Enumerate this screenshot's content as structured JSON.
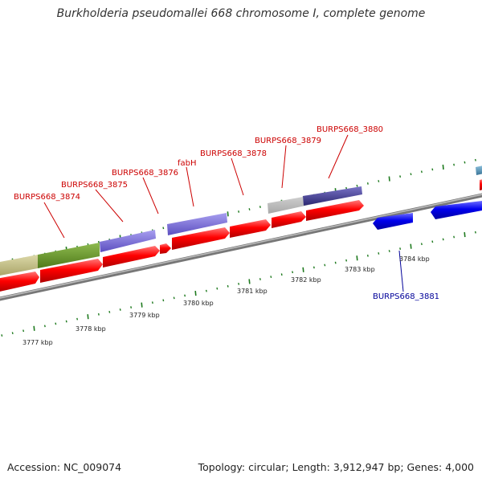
{
  "title": "Burkholderia pseudomallei 668 chromosome I, complete genome",
  "footer": {
    "accession": "Accession: NC_009074",
    "summary": "Topology: circular; Length: 3,912,947 bp; Genes: 4,000"
  },
  "colors": {
    "backbone": "#8c8c8c",
    "forward_cds": "#ff0000",
    "reverse_cds": "#0000ee",
    "tick": "#1e7a1e",
    "label_forward": "#cc0000",
    "label_reverse": "#000099",
    "feature_khaki": "#c7c285",
    "feature_olive": "#6d9a30",
    "feature_purple": "#7a6cd8",
    "feature_silver": "#c4c4c4",
    "feature_navy": "#3d3890",
    "feature_steel": "#4f8db0"
  },
  "gene_labels": [
    {
      "id": "l3874",
      "text": "BURPS668_3874",
      "strand": "forward"
    },
    {
      "id": "l3875",
      "text": "BURPS668_3875",
      "strand": "forward"
    },
    {
      "id": "l3876",
      "text": "BURPS668_3876",
      "strand": "forward"
    },
    {
      "id": "lfabh",
      "text": "fabH",
      "strand": "forward"
    },
    {
      "id": "l3878",
      "text": "BURPS668_3878",
      "strand": "forward"
    },
    {
      "id": "l3879",
      "text": "BURPS668_3879",
      "strand": "forward"
    },
    {
      "id": "l3880",
      "text": "BURPS668_3880",
      "strand": "forward"
    },
    {
      "id": "l3881",
      "text": "BURPS668_3881",
      "strand": "reverse"
    }
  ],
  "kbp_labels": [
    "3777 kbp",
    "3778 kbp",
    "3779 kbp",
    "3780 kbp",
    "3781 kbp",
    "3782 kbp",
    "3783 kbp",
    "3784 kbp"
  ]
}
